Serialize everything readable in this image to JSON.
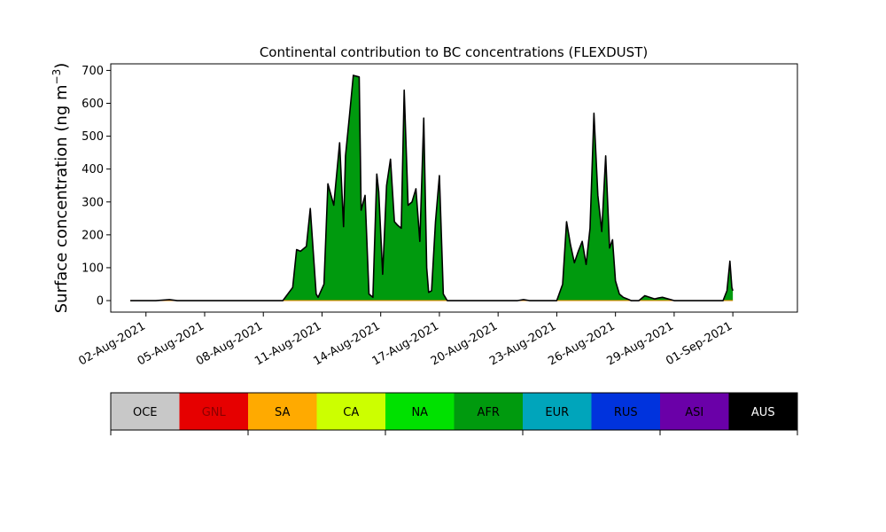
{
  "chart_data": {
    "type": "area",
    "title": "Continental contribution to BC concentrations (FLEXDUST)",
    "ylabel": "Surface concentration (ng m",
    "ylabel_unit_exponent": "−3",
    "ylabel_close": ")",
    "xlabel": "",
    "ylim": [
      -35,
      720
    ],
    "yticks": [
      0,
      100,
      200,
      300,
      400,
      500,
      600,
      700
    ],
    "xlim_days": [
      -0.8,
      34.3
    ],
    "xtick_days": [
      1,
      4,
      7,
      10,
      13,
      16,
      19,
      22,
      25,
      28,
      31
    ],
    "xtick_labels": [
      "02-Aug-2021",
      "05-Aug-2021",
      "08-Aug-2021",
      "11-Aug-2021",
      "14-Aug-2021",
      "17-Aug-2021",
      "20-Aug-2021",
      "23-Aug-2021",
      "26-Aug-2021",
      "29-Aug-2021",
      "01-Sep-2021"
    ],
    "grid": false,
    "fill_color": "#009a0e",
    "line_color": "#000000",
    "x_days": [
      0.2,
      1.5,
      2.2,
      2.6,
      3.0,
      8.0,
      8.5,
      8.7,
      8.9,
      9.2,
      9.4,
      9.7,
      9.8,
      10.1,
      10.3,
      10.6,
      10.9,
      11.1,
      11.2,
      11.4,
      11.6,
      11.9,
      12.0,
      12.2,
      12.4,
      12.6,
      12.8,
      12.9,
      13.1,
      13.3,
      13.5,
      13.7,
      13.85,
      14.05,
      14.2,
      14.4,
      14.6,
      14.8,
      15.0,
      15.2,
      15.35,
      15.45,
      15.6,
      15.8,
      16.0,
      16.2,
      16.4,
      16.5,
      16.7,
      17.0,
      19.0,
      20.0,
      20.3,
      20.6,
      21.0,
      21.5,
      22.0,
      22.3,
      22.5,
      22.7,
      22.9,
      23.1,
      23.3,
      23.5,
      23.7,
      23.9,
      24.1,
      24.3,
      24.5,
      24.7,
      24.85,
      25.0,
      25.2,
      25.4,
      25.6,
      25.8,
      26.0,
      26.2,
      26.5,
      27.0,
      27.2,
      27.4,
      27.7,
      28.0,
      28.3,
      28.6,
      29.0,
      30.0,
      30.5,
      30.7,
      30.85,
      30.95,
      31.0
    ],
    "values": [
      0,
      0,
      3,
      0,
      0,
      0,
      40,
      155,
      150,
      165,
      280,
      20,
      10,
      50,
      355,
      290,
      480,
      225,
      440,
      560,
      685,
      680,
      275,
      320,
      20,
      10,
      385,
      330,
      80,
      350,
      430,
      240,
      230,
      220,
      640,
      290,
      300,
      340,
      180,
      555,
      100,
      25,
      30,
      240,
      380,
      20,
      0,
      0,
      0,
      0,
      0,
      0,
      3,
      0,
      0,
      0,
      0,
      50,
      240,
      170,
      115,
      150,
      180,
      110,
      220,
      570,
      320,
      210,
      440,
      160,
      185,
      60,
      20,
      10,
      5,
      0,
      0,
      0,
      15,
      5,
      8,
      10,
      5,
      0,
      0,
      0,
      0,
      0,
      0,
      30,
      120,
      40,
      30
    ],
    "legend": {
      "placement": "bottom",
      "entries": [
        {
          "name": "OCE",
          "color": "#c8c8c8",
          "text_color": "#000000"
        },
        {
          "name": "GNL",
          "color": "#e60000",
          "text_color": "#8a0000"
        },
        {
          "name": "SA",
          "color": "#ffaa00",
          "text_color": "#000000"
        },
        {
          "name": "CA",
          "color": "#ccff00",
          "text_color": "#000000"
        },
        {
          "name": "NA",
          "color": "#00e100",
          "text_color": "#000000"
        },
        {
          "name": "AFR",
          "color": "#009a0e",
          "text_color": "#000000"
        },
        {
          "name": "EUR",
          "color": "#00a5bb",
          "text_color": "#000000"
        },
        {
          "name": "RUS",
          "color": "#0033dd",
          "text_color": "#000000"
        },
        {
          "name": "ASI",
          "color": "#6a00a8",
          "text_color": "#000000"
        },
        {
          "name": "AUS",
          "color": "#000000",
          "text_color": "#ffffff"
        }
      ]
    }
  }
}
